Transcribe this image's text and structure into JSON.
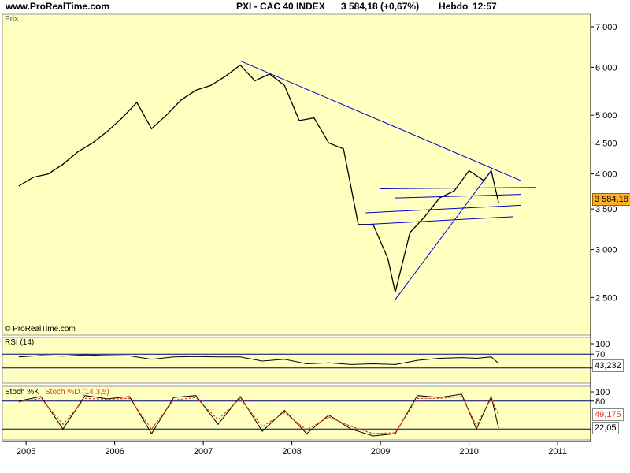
{
  "header": {
    "site": "www.ProRealTime.com",
    "instrument": "PXI - CAC 40 INDEX",
    "quote": "3 584,18 (+0,67%)",
    "period": "Hebdo",
    "time": "12:57"
  },
  "watermark": "© ProRealTime.com",
  "colors": {
    "panel_bg": "#FFFFC0",
    "price_line": "#000000",
    "trendline": "#0000CC",
    "last_price_tag": "#FFB020",
    "stoch_d": "#E04020",
    "band_line": "#000080"
  },
  "chart_data": [
    {
      "type": "line",
      "label": "Prix",
      "y_scale": "log",
      "ylim": [
        2200,
        7300
      ],
      "yticks": [
        2500,
        3000,
        3500,
        4000,
        4500,
        5000,
        6000,
        7000
      ],
      "ytick_labels": [
        "2 500",
        "3 000",
        "3 500",
        "4 000",
        "4 500",
        "5 000",
        "6 000",
        "7 000"
      ],
      "last_value": 3584.18,
      "last_value_label": "3 584,18",
      "series": [
        {
          "x": [
            "2004-12",
            "2005-02",
            "2005-04",
            "2005-06",
            "2005-08",
            "2005-10",
            "2005-12",
            "2006-02",
            "2006-04",
            "2006-06",
            "2006-08",
            "2006-10",
            "2006-12",
            "2007-02",
            "2007-04",
            "2007-06",
            "2007-08",
            "2007-10",
            "2007-12",
            "2008-02",
            "2008-04",
            "2008-06",
            "2008-08",
            "2008-10",
            "2008-12",
            "2009-02",
            "2009-03",
            "2009-05",
            "2009-07",
            "2009-09",
            "2009-11",
            "2010-01",
            "2010-03",
            "2010-04",
            "2010-05"
          ],
          "values": [
            3820,
            3950,
            4000,
            4150,
            4350,
            4500,
            4700,
            4950,
            5250,
            4750,
            5000,
            5300,
            5500,
            5600,
            5800,
            6050,
            5700,
            5850,
            5600,
            4900,
            4950,
            4500,
            4400,
            3300,
            3300,
            2900,
            2550,
            3200,
            3400,
            3650,
            3750,
            4050,
            3900,
            4050,
            3584
          ]
        }
      ],
      "trendlines": [
        {
          "from": [
            "2007-06",
            6150
          ],
          "to": [
            "2010-08",
            3900
          ]
        },
        {
          "from": [
            "2009-03",
            2480
          ],
          "to": [
            "2010-04",
            4050
          ]
        },
        {
          "from": [
            "2009-01",
            3780
          ],
          "to": [
            "2010-10",
            3800
          ]
        },
        {
          "from": [
            "2009-03",
            3650
          ],
          "to": [
            "2010-08",
            3700
          ]
        },
        {
          "from": [
            "2008-11",
            3450
          ],
          "to": [
            "2010-08",
            3550
          ]
        },
        {
          "from": [
            "2008-11",
            3300
          ],
          "to": [
            "2010-07",
            3400
          ]
        }
      ]
    },
    {
      "type": "line",
      "label": "RSI (14)",
      "ylim": [
        0,
        100
      ],
      "yticks": [
        100,
        70,
        30
      ],
      "bands": [
        70,
        30
      ],
      "last_value": 43.232,
      "last_value_label": "43,232",
      "series": [
        {
          "x": [
            "2004-12",
            "2005-03",
            "2005-06",
            "2005-09",
            "2005-12",
            "2006-03",
            "2006-06",
            "2006-09",
            "2006-12",
            "2007-03",
            "2007-06",
            "2007-09",
            "2007-12",
            "2008-03",
            "2008-06",
            "2008-09",
            "2008-12",
            "2009-03",
            "2009-06",
            "2009-09",
            "2009-12",
            "2010-02",
            "2010-04",
            "2010-05"
          ],
          "values": [
            62,
            66,
            64,
            68,
            66,
            65,
            55,
            62,
            63,
            62,
            62,
            50,
            55,
            42,
            45,
            40,
            42,
            40,
            52,
            58,
            60,
            58,
            62,
            43.232
          ]
        }
      ]
    },
    {
      "type": "line",
      "label": "Stoch %K",
      "legend": [
        "Stoch %D (14,3,5)"
      ],
      "ylim": [
        0,
        100
      ],
      "yticks": [
        100,
        80
      ],
      "bands": [
        80,
        20
      ],
      "last_values": {
        "d": 49.175,
        "k": 22.05
      },
      "last_value_labels": {
        "d": "49,175",
        "k": "22,05"
      },
      "series": [
        {
          "name": "Stoch %K",
          "x": [
            "2004-12",
            "2005-03",
            "2005-06",
            "2005-09",
            "2005-12",
            "2006-03",
            "2006-06",
            "2006-09",
            "2006-12",
            "2007-03",
            "2007-06",
            "2007-09",
            "2007-12",
            "2008-03",
            "2008-06",
            "2008-09",
            "2008-12",
            "2009-03",
            "2009-06",
            "2009-09",
            "2009-12",
            "2010-02",
            "2010-04",
            "2010-05"
          ],
          "values": [
            80,
            90,
            20,
            92,
            85,
            90,
            10,
            88,
            92,
            30,
            90,
            15,
            60,
            10,
            50,
            20,
            5,
            10,
            92,
            88,
            95,
            20,
            90,
            22.05
          ]
        },
        {
          "name": "Stoch %D (14,3,5)",
          "x": [
            "2004-12",
            "2005-03",
            "2005-06",
            "2005-09",
            "2005-12",
            "2006-03",
            "2006-06",
            "2006-09",
            "2006-12",
            "2007-03",
            "2007-06",
            "2007-09",
            "2007-12",
            "2008-03",
            "2008-06",
            "2008-09",
            "2008-12",
            "2009-03",
            "2009-06",
            "2009-09",
            "2009-12",
            "2010-02",
            "2010-04",
            "2010-05"
          ],
          "values": [
            78,
            86,
            30,
            86,
            84,
            86,
            20,
            82,
            88,
            40,
            86,
            25,
            55,
            18,
            46,
            26,
            10,
            12,
            86,
            86,
            90,
            28,
            86,
            49.175
          ]
        }
      ]
    }
  ],
  "x_axis": {
    "labels": [
      "2005",
      "2006",
      "2007",
      "2008",
      "2009",
      "2010",
      "2011"
    ]
  }
}
